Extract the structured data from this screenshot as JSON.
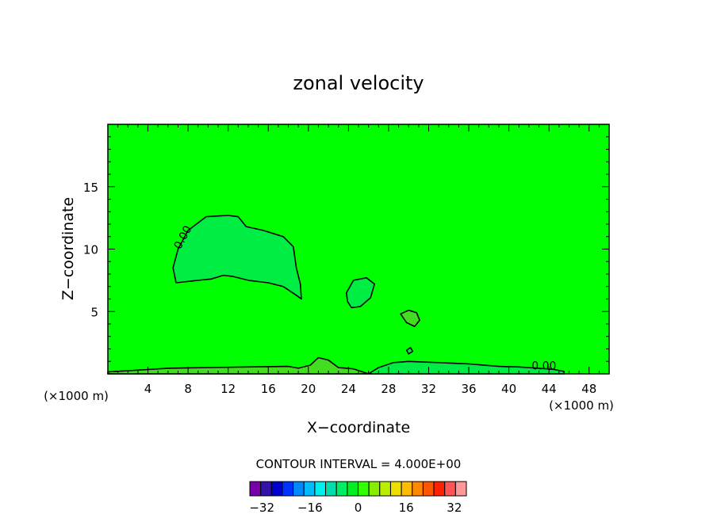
{
  "chart_data": {
    "type": "contour",
    "title": "zonal velocity",
    "xlabel": "X−coordinate",
    "ylabel": "Z−coordinate",
    "x_unit_label": "(×1000 m)",
    "y_unit_label": "(×1000 m)",
    "xlim": [
      0,
      50
    ],
    "ylim": [
      0,
      20
    ],
    "x_ticks": [
      4,
      8,
      12,
      16,
      20,
      24,
      28,
      32,
      36,
      40,
      44,
      48
    ],
    "y_ticks": [
      5,
      10,
      15
    ],
    "background_color": "#00ff00",
    "contour_label": "0.00",
    "contour_interval_text": "CONTOUR INTERVAL = 4.000E+00",
    "regions": [
      {
        "name": "upper-left-lobe",
        "color": "#00ee44",
        "points": [
          [
            6.8,
            7.3
          ],
          [
            6.5,
            8.5
          ],
          [
            7,
            10
          ],
          [
            8,
            11.5
          ],
          [
            9.8,
            12.6
          ],
          [
            12,
            12.7
          ],
          [
            13,
            12.6
          ],
          [
            13.8,
            11.8
          ],
          [
            15.5,
            11.5
          ],
          [
            17.5,
            11
          ],
          [
            18.5,
            10.2
          ],
          [
            18.8,
            8.5
          ],
          [
            19.2,
            7.2
          ],
          [
            19.3,
            6
          ],
          [
            18.8,
            6.3
          ],
          [
            17.5,
            7
          ],
          [
            16,
            7.3
          ],
          [
            14,
            7.5
          ],
          [
            12.5,
            7.8
          ],
          [
            11.5,
            7.9
          ],
          [
            10.3,
            7.6
          ],
          [
            9,
            7.5
          ]
        ]
      },
      {
        "name": "central-lobe",
        "color": "#00ee44",
        "points": [
          [
            23.8,
            6.5
          ],
          [
            24.5,
            7.5
          ],
          [
            25.8,
            7.7
          ],
          [
            26.6,
            7.2
          ],
          [
            26.2,
            6.1
          ],
          [
            25.2,
            5.4
          ],
          [
            24.3,
            5.3
          ],
          [
            23.9,
            5.8
          ]
        ]
      },
      {
        "name": "small-patch-1",
        "color": "#44dd22",
        "points": [
          [
            29.2,
            4.8
          ],
          [
            30,
            5.1
          ],
          [
            30.8,
            4.9
          ],
          [
            31.1,
            4.3
          ],
          [
            30.6,
            3.8
          ],
          [
            29.8,
            4.1
          ]
        ]
      },
      {
        "name": "small-patch-2",
        "color": "#00ee44",
        "points": [
          [
            29.8,
            1.9
          ],
          [
            30.2,
            2.1
          ],
          [
            30.4,
            1.8
          ],
          [
            30,
            1.6
          ]
        ]
      },
      {
        "name": "lower-right-band",
        "color": "#00ee44",
        "points": [
          [
            26,
            0
          ],
          [
            27,
            0.5
          ],
          [
            28.5,
            0.9
          ],
          [
            30,
            1.0
          ],
          [
            33,
            0.9
          ],
          [
            36,
            0.8
          ],
          [
            39,
            0.6
          ],
          [
            41,
            0.55
          ],
          [
            43,
            0.45
          ],
          [
            44.5,
            0.35
          ],
          [
            45.5,
            0.2
          ],
          [
            45.5,
            0
          ],
          [
            26,
            0
          ]
        ]
      },
      {
        "name": "bottom-strip",
        "color": "#44dd22",
        "points": [
          [
            0,
            0
          ],
          [
            0,
            0.15
          ],
          [
            3,
            0.3
          ],
          [
            6,
            0.45
          ],
          [
            10,
            0.5
          ],
          [
            14,
            0.55
          ],
          [
            18,
            0.6
          ],
          [
            19,
            0.45
          ],
          [
            20.2,
            0.7
          ],
          [
            21,
            1.3
          ],
          [
            22,
            1.1
          ],
          [
            23,
            0.5
          ],
          [
            24.5,
            0.4
          ],
          [
            26,
            0
          ],
          [
            0,
            0
          ]
        ]
      }
    ],
    "colorbar": {
      "tick_labels": [
        "−32",
        "−16",
        "0",
        "16",
        "32"
      ],
      "tick_values": [
        -32,
        -16,
        0,
        16,
        32
      ],
      "value_range": [
        -36,
        36
      ],
      "colors": [
        "#7700aa",
        "#3311aa",
        "#0000cc",
        "#0033ff",
        "#0088ff",
        "#00bbff",
        "#00eeee",
        "#00ddaa",
        "#00ee66",
        "#00ee22",
        "#33ff00",
        "#88ee00",
        "#bbee00",
        "#eedd00",
        "#ffbb00",
        "#ff8800",
        "#ff5500",
        "#ff2200",
        "#ff5555",
        "#ff9999"
      ]
    }
  }
}
